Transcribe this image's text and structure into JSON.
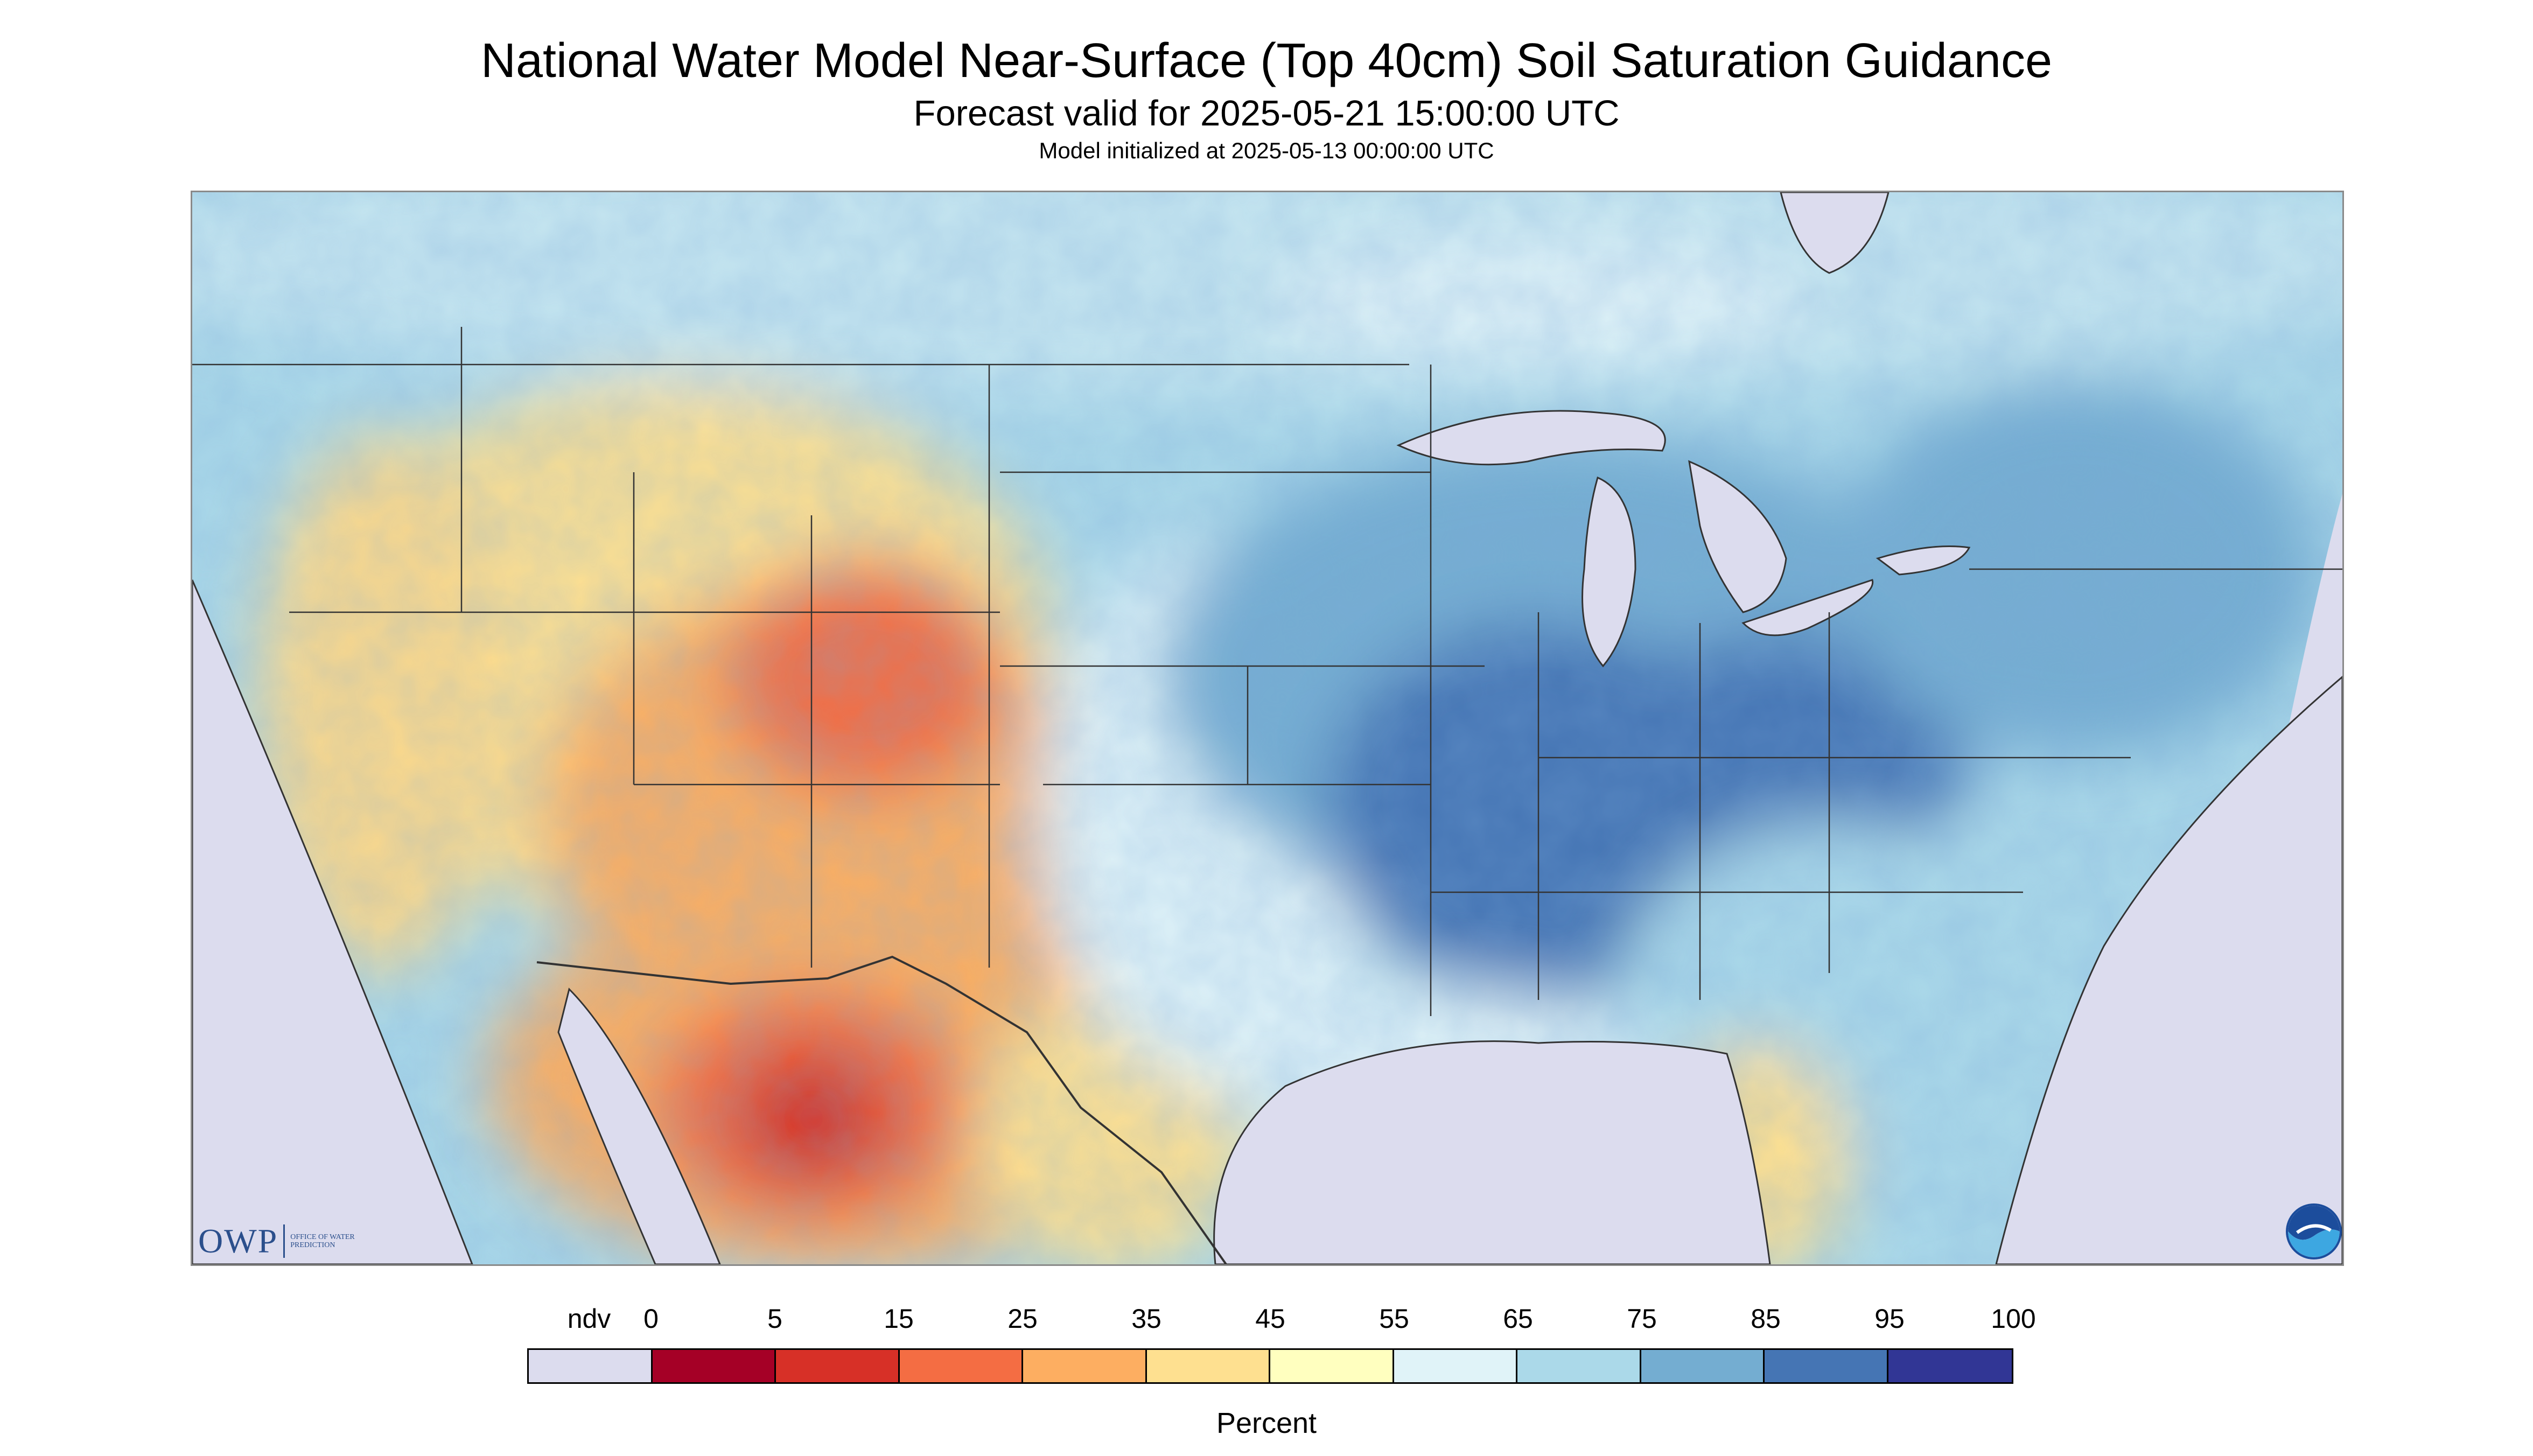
{
  "header": {
    "title": "National Water Model Near-Surface (Top 40cm) Soil Saturation Guidance",
    "subtitle": "Forecast valid for 2025-05-21 15:00:00 UTC",
    "init_line": "Model initialized at 2025-05-13 00:00:00 UTC"
  },
  "map": {
    "region": "CONUS",
    "variable_unit": "Percent",
    "background_color": "#dcdcee",
    "boundary_color": "#333333",
    "dominant_patterns": [
      {
        "zone": "southwest",
        "level": "0-35",
        "color": "#f46d43"
      },
      {
        "zone": "west-great-basin",
        "level": "35-55",
        "color": "#fdd98a"
      },
      {
        "zone": "midwest-ohio-valley",
        "level": "75-95",
        "color": "#4575b4"
      },
      {
        "zone": "northeast",
        "level": "65-85",
        "color": "#74add1"
      },
      {
        "zone": "southeast",
        "level": "55-75",
        "color": "#abd9e9"
      },
      {
        "zone": "texas-mexico",
        "level": "5-35",
        "color": "#d73027"
      }
    ]
  },
  "logos": {
    "owp": {
      "word": "OWP",
      "sub": "OFFICE OF WATER PREDICTION"
    },
    "noaa": {
      "icon": "noaa-logo-icon"
    }
  },
  "legend": {
    "unit": "Percent",
    "ticks": [
      "ndv",
      "0",
      "5",
      "15",
      "25",
      "35",
      "45",
      "55",
      "65",
      "75",
      "85",
      "95",
      "100"
    ],
    "colors": [
      "#dcdcee",
      "#a50026",
      "#d73027",
      "#f46d43",
      "#fdae61",
      "#fee090",
      "#ffffbf",
      "#e0f3f8",
      "#abd9e9",
      "#74add1",
      "#4575b4",
      "#313695"
    ]
  }
}
